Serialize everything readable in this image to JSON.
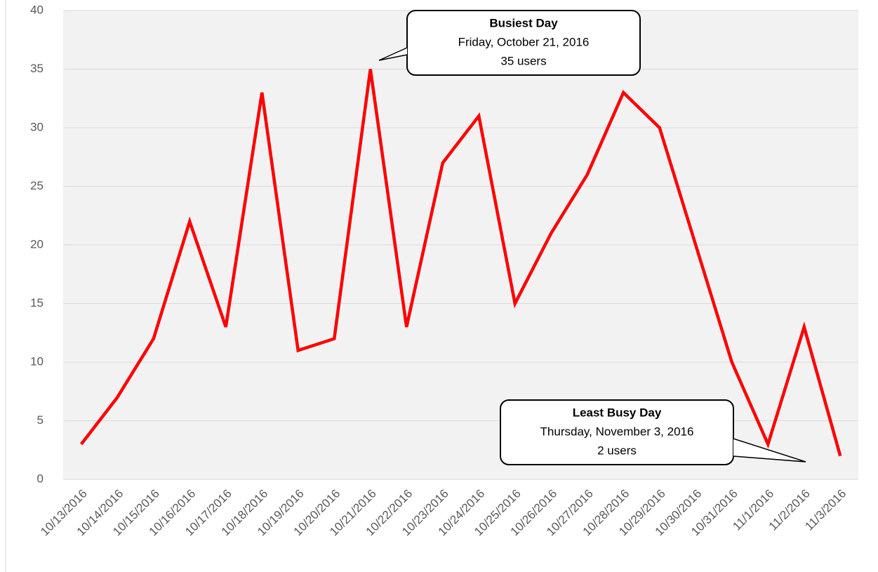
{
  "chart_data": {
    "type": "line",
    "categories": [
      "10/13/2016",
      "10/14/2016",
      "10/15/2016",
      "10/16/2016",
      "10/17/2016",
      "10/18/2016",
      "10/19/2016",
      "10/20/2016",
      "10/21/2016",
      "10/22/2016",
      "10/23/2016",
      "10/24/2016",
      "10/25/2016",
      "10/26/2016",
      "10/27/2016",
      "10/28/2016",
      "10/29/2016",
      "10/30/2016",
      "10/31/2016",
      "11/1/2016",
      "11/2/2016",
      "11/3/2016"
    ],
    "values": [
      3,
      7,
      12,
      22,
      13,
      33,
      11,
      12,
      35,
      13,
      27,
      31,
      15,
      21,
      26,
      33,
      30,
      20,
      10,
      3,
      13,
      2
    ],
    "color": "#ff0000",
    "ylim": [
      0,
      40
    ],
    "yticks": [
      0,
      5,
      10,
      15,
      20,
      25,
      30,
      35,
      40
    ],
    "grid": true,
    "annotations": [
      {
        "title": "Busiest Day",
        "lines": [
          "Friday, October 21, 2016",
          "35 users"
        ]
      },
      {
        "title": "Least Busy Day",
        "lines": [
          "Thursday, November 3, 2016",
          "2 users"
        ]
      }
    ]
  }
}
